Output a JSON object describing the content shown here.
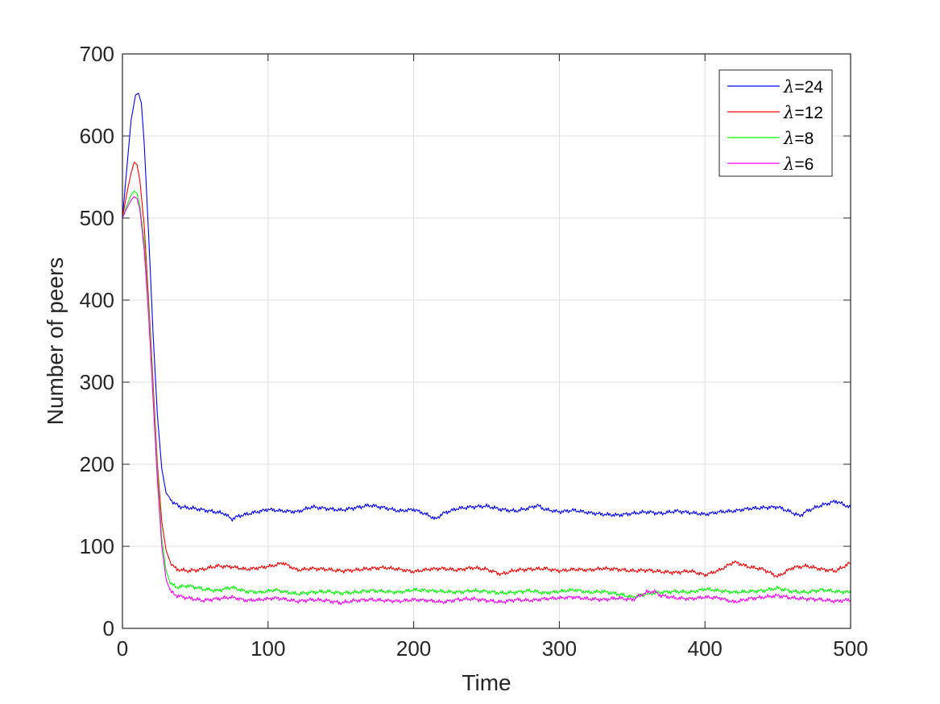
{
  "chart_data": {
    "type": "line",
    "title": "",
    "xlabel": "Time",
    "ylabel": "Number of peers",
    "xlim": [
      0,
      500
    ],
    "ylim": [
      0,
      700
    ],
    "xticks": [
      "0",
      "100",
      "200",
      "300",
      "400",
      "500"
    ],
    "yticks": [
      "0",
      "100",
      "200",
      "300",
      "400",
      "500",
      "600",
      "700"
    ],
    "grid": true,
    "legend_position": "top-right",
    "series": [
      {
        "name": "λ=24",
        "symbol": "λ",
        "suffix": "=24",
        "color": "#0000ff",
        "points": [
          [
            0,
            500
          ],
          [
            3,
            560
          ],
          [
            6,
            620
          ],
          [
            9,
            650
          ],
          [
            11,
            652
          ],
          [
            13,
            640
          ],
          [
            15,
            590
          ],
          [
            18,
            480
          ],
          [
            21,
            360
          ],
          [
            24,
            260
          ],
          [
            27,
            195
          ],
          [
            30,
            165
          ],
          [
            35,
            153
          ],
          [
            40,
            148
          ],
          [
            50,
            146
          ],
          [
            60,
            143
          ],
          [
            70,
            140
          ],
          [
            75,
            133
          ],
          [
            80,
            137
          ],
          [
            90,
            141
          ],
          [
            100,
            145
          ],
          [
            110,
            143
          ],
          [
            120,
            142
          ],
          [
            130,
            148
          ],
          [
            140,
            146
          ],
          [
            150,
            144
          ],
          [
            160,
            147
          ],
          [
            170,
            150
          ],
          [
            180,
            147
          ],
          [
            190,
            143
          ],
          [
            200,
            145
          ],
          [
            210,
            138
          ],
          [
            215,
            133
          ],
          [
            220,
            140
          ],
          [
            230,
            146
          ],
          [
            240,
            148
          ],
          [
            250,
            149
          ],
          [
            260,
            145
          ],
          [
            270,
            143
          ],
          [
            280,
            147
          ],
          [
            285,
            150
          ],
          [
            290,
            145
          ],
          [
            300,
            142
          ],
          [
            310,
            144
          ],
          [
            320,
            141
          ],
          [
            330,
            139
          ],
          [
            340,
            138
          ],
          [
            350,
            140
          ],
          [
            360,
            142
          ],
          [
            370,
            140
          ],
          [
            380,
            143
          ],
          [
            390,
            141
          ],
          [
            400,
            139
          ],
          [
            410,
            142
          ],
          [
            420,
            143
          ],
          [
            430,
            146
          ],
          [
            440,
            147
          ],
          [
            450,
            148
          ],
          [
            460,
            141
          ],
          [
            465,
            137
          ],
          [
            470,
            143
          ],
          [
            480,
            150
          ],
          [
            490,
            155
          ],
          [
            500,
            147
          ]
        ]
      },
      {
        "name": "λ=12",
        "symbol": "λ",
        "suffix": "=12",
        "color": "#ff0000",
        "points": [
          [
            0,
            500
          ],
          [
            3,
            530
          ],
          [
            6,
            555
          ],
          [
            8,
            568
          ],
          [
            10,
            565
          ],
          [
            12,
            545
          ],
          [
            15,
            490
          ],
          [
            18,
            400
          ],
          [
            21,
            300
          ],
          [
            24,
            200
          ],
          [
            27,
            130
          ],
          [
            30,
            95
          ],
          [
            33,
            80
          ],
          [
            37,
            72
          ],
          [
            45,
            70
          ],
          [
            55,
            72
          ],
          [
            65,
            76
          ],
          [
            75,
            75
          ],
          [
            85,
            72
          ],
          [
            95,
            74
          ],
          [
            105,
            77
          ],
          [
            110,
            80
          ],
          [
            120,
            71
          ],
          [
            130,
            73
          ],
          [
            140,
            72
          ],
          [
            150,
            70
          ],
          [
            160,
            71
          ],
          [
            170,
            73
          ],
          [
            180,
            74
          ],
          [
            190,
            72
          ],
          [
            200,
            69
          ],
          [
            210,
            72
          ],
          [
            220,
            73
          ],
          [
            230,
            71
          ],
          [
            240,
            74
          ],
          [
            250,
            72
          ],
          [
            260,
            66
          ],
          [
            270,
            71
          ],
          [
            280,
            72
          ],
          [
            290,
            73
          ],
          [
            300,
            70
          ],
          [
            310,
            72
          ],
          [
            320,
            71
          ],
          [
            330,
            73
          ],
          [
            340,
            72
          ],
          [
            350,
            70
          ],
          [
            360,
            71
          ],
          [
            370,
            69
          ],
          [
            380,
            68
          ],
          [
            390,
            70
          ],
          [
            400,
            65
          ],
          [
            410,
            71
          ],
          [
            420,
            81
          ],
          [
            430,
            75
          ],
          [
            440,
            72
          ],
          [
            450,
            63
          ],
          [
            460,
            74
          ],
          [
            470,
            76
          ],
          [
            480,
            72
          ],
          [
            490,
            70
          ],
          [
            500,
            80
          ]
        ]
      },
      {
        "name": "λ=8",
        "symbol": "λ",
        "suffix": "=8",
        "color": "#00ff00",
        "points": [
          [
            0,
            500
          ],
          [
            3,
            515
          ],
          [
            6,
            528
          ],
          [
            8,
            533
          ],
          [
            10,
            530
          ],
          [
            12,
            515
          ],
          [
            15,
            470
          ],
          [
            18,
            390
          ],
          [
            21,
            290
          ],
          [
            24,
            190
          ],
          [
            27,
            110
          ],
          [
            30,
            70
          ],
          [
            33,
            55
          ],
          [
            37,
            50
          ],
          [
            45,
            52
          ],
          [
            55,
            48
          ],
          [
            65,
            46
          ],
          [
            75,
            50
          ],
          [
            85,
            45
          ],
          [
            95,
            44
          ],
          [
            105,
            47
          ],
          [
            110,
            45
          ],
          [
            120,
            42
          ],
          [
            130,
            44
          ],
          [
            140,
            45
          ],
          [
            150,
            43
          ],
          [
            160,
            44
          ],
          [
            170,
            46
          ],
          [
            180,
            45
          ],
          [
            190,
            44
          ],
          [
            200,
            47
          ],
          [
            210,
            46
          ],
          [
            220,
            45
          ],
          [
            230,
            44
          ],
          [
            240,
            46
          ],
          [
            250,
            45
          ],
          [
            260,
            43
          ],
          [
            270,
            44
          ],
          [
            280,
            46
          ],
          [
            290,
            43
          ],
          [
            300,
            45
          ],
          [
            310,
            47
          ],
          [
            320,
            44
          ],
          [
            330,
            45
          ],
          [
            340,
            42
          ],
          [
            350,
            38
          ],
          [
            360,
            42
          ],
          [
            370,
            44
          ],
          [
            380,
            45
          ],
          [
            390,
            44
          ],
          [
            400,
            48
          ],
          [
            410,
            46
          ],
          [
            420,
            44
          ],
          [
            430,
            45
          ],
          [
            440,
            46
          ],
          [
            450,
            49
          ],
          [
            460,
            45
          ],
          [
            470,
            44
          ],
          [
            480,
            47
          ],
          [
            490,
            45
          ],
          [
            500,
            44
          ]
        ]
      },
      {
        "name": "λ=6",
        "symbol": "λ",
        "suffix": "=6",
        "color": "#ff00ff",
        "points": [
          [
            0,
            500
          ],
          [
            3,
            512
          ],
          [
            6,
            522
          ],
          [
            8,
            526
          ],
          [
            10,
            524
          ],
          [
            12,
            510
          ],
          [
            15,
            460
          ],
          [
            18,
            380
          ],
          [
            21,
            280
          ],
          [
            24,
            180
          ],
          [
            27,
            100
          ],
          [
            30,
            60
          ],
          [
            33,
            45
          ],
          [
            37,
            40
          ],
          [
            45,
            37
          ],
          [
            55,
            34
          ],
          [
            65,
            36
          ],
          [
            75,
            38
          ],
          [
            85,
            34
          ],
          [
            95,
            35
          ],
          [
            105,
            37
          ],
          [
            110,
            36
          ],
          [
            120,
            33
          ],
          [
            130,
            35
          ],
          [
            140,
            34
          ],
          [
            150,
            31
          ],
          [
            160,
            34
          ],
          [
            170,
            35
          ],
          [
            180,
            34
          ],
          [
            190,
            33
          ],
          [
            200,
            35
          ],
          [
            210,
            34
          ],
          [
            220,
            32
          ],
          [
            230,
            35
          ],
          [
            240,
            36
          ],
          [
            250,
            34
          ],
          [
            260,
            32
          ],
          [
            270,
            35
          ],
          [
            280,
            34
          ],
          [
            290,
            36
          ],
          [
            300,
            37
          ],
          [
            310,
            38
          ],
          [
            320,
            36
          ],
          [
            330,
            35
          ],
          [
            340,
            37
          ],
          [
            350,
            35
          ],
          [
            360,
            44
          ],
          [
            365,
            45
          ],
          [
            370,
            40
          ],
          [
            380,
            37
          ],
          [
            390,
            36
          ],
          [
            400,
            38
          ],
          [
            410,
            37
          ],
          [
            420,
            32
          ],
          [
            430,
            36
          ],
          [
            440,
            38
          ],
          [
            450,
            40
          ],
          [
            460,
            37
          ],
          [
            470,
            36
          ],
          [
            480,
            35
          ],
          [
            490,
            33
          ],
          [
            500,
            35
          ]
        ]
      }
    ]
  }
}
